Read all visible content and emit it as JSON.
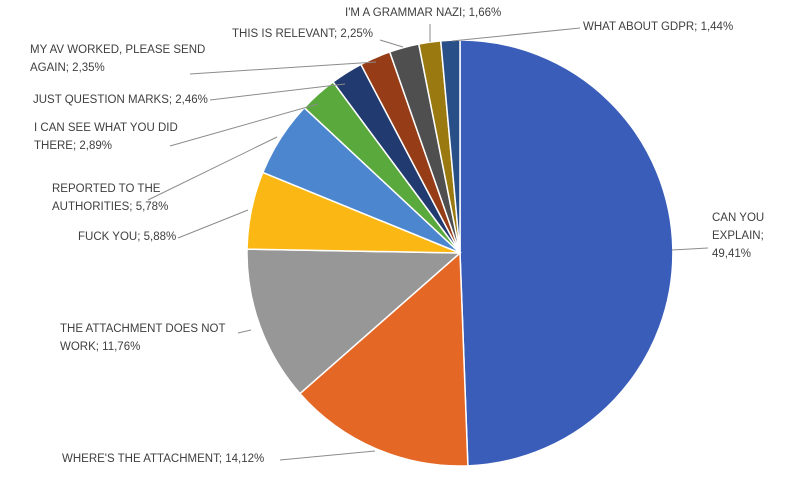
{
  "chart_data": {
    "type": "pie",
    "start_angle_deg": 0,
    "direction": "clockwise",
    "slices": [
      {
        "label": "CAN YOU EXPLAIN;",
        "label_lines": [
          "CAN YOU",
          "EXPLAIN;",
          "49,41%"
        ],
        "value": 49.41,
        "color": "#3a5dba"
      },
      {
        "label": "WHERE'S THE ATTACHMENT;",
        "label_lines": [
          "WHERE'S THE ATTACHMENT; 14,12%"
        ],
        "value": 14.12,
        "color": "#e46726"
      },
      {
        "label": "THE ATTACHMENT DOES NOT WORK;",
        "label_lines": [
          "THE ATTACHMENT DOES NOT",
          "WORK; 11,76%"
        ],
        "value": 11.76,
        "color": "#979797"
      },
      {
        "label": "FUCK YOU;",
        "label_lines": [
          "FUCK YOU; 5,88%"
        ],
        "value": 5.88,
        "color": "#fbb713"
      },
      {
        "label": "REPORTED TO THE AUTHORITIES;",
        "label_lines": [
          "REPORTED TO THE",
          "AUTHORITIES; 5,78%"
        ],
        "value": 5.78,
        "color": "#4b86cf"
      },
      {
        "label": "I CAN SEE WHAT YOU DID THERE;",
        "label_lines": [
          "I CAN SEE WHAT YOU DID",
          "THERE; 2,89%"
        ],
        "value": 2.89,
        "color": "#5aa93d"
      },
      {
        "label": "JUST QUESTION MARKS;",
        "label_lines": [
          "JUST QUESTION MARKS; 2,46%"
        ],
        "value": 2.46,
        "color": "#213a70"
      },
      {
        "label": "MY AV WORKED, PLEASE SEND AGAIN;",
        "label_lines": [
          "MY AV WORKED, PLEASE SEND",
          "AGAIN; 2,35%"
        ],
        "value": 2.35,
        "color": "#963c17"
      },
      {
        "label": "THIS IS RELEVANT;",
        "label_lines": [
          "THIS IS RELEVANT; 2,25%"
        ],
        "value": 2.25,
        "color": "#4f4f4f"
      },
      {
        "label": "I'M A GRAMMAR NAZI;",
        "label_lines": [
          "I'M A GRAMMAR NAZI; 1,66%"
        ],
        "value": 1.66,
        "color": "#9a7a10"
      },
      {
        "label": "WHAT ABOUT GDPR;",
        "label_lines": [
          "WHAT ABOUT GDPR; 1,44%"
        ],
        "value": 1.44,
        "color": "#284f88"
      }
    ]
  }
}
